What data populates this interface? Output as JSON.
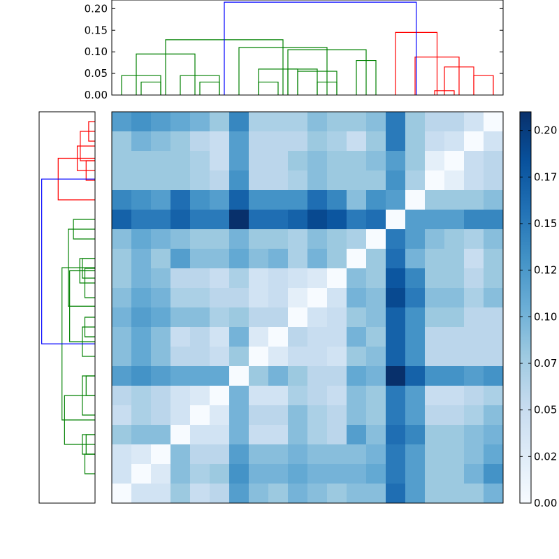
{
  "chart_data": {
    "type": "heatmap",
    "title": "",
    "xlabel": "",
    "ylabel": "",
    "n_rows": 20,
    "n_cols": 20,
    "colormap": "Blues",
    "color_range": [
      0,
      0.21
    ],
    "colorbar": {
      "ticks": [
        0.0,
        0.025,
        0.05,
        0.075,
        0.1,
        0.125,
        0.15,
        0.175,
        0.2
      ],
      "tick_labels": [
        "0.00",
        "0.02",
        "0.05",
        "0.07",
        "0.10",
        "0.12",
        "0.15",
        "0.17",
        "0.20"
      ]
    },
    "top_dendrogram": {
      "ylim": [
        0,
        0.22
      ],
      "ticks": [
        0.0,
        0.05,
        0.1,
        0.15,
        0.2
      ],
      "tick_labels": [
        "0.00",
        "0.05",
        "0.10",
        "0.15",
        "0.20"
      ],
      "links": [
        {
          "a": 0.5,
          "b": 2.5,
          "h": 0.045,
          "color": "#008000"
        },
        {
          "a": 1.5,
          "b": 2.5,
          "h": 0.03,
          "color": "#008000"
        },
        {
          "a": 3.5,
          "b": 5.5,
          "h": 0.045,
          "color": "#008000"
        },
        {
          "a": 4.5,
          "b": 5.5,
          "h": 0.03,
          "color": "#008000"
        },
        {
          "a": 1.25,
          "b": 4.25,
          "h": 0.095,
          "color": "#008000"
        },
        {
          "a": 7.5,
          "b": 9.5,
          "h": 0.06,
          "color": "#008000"
        },
        {
          "a": 7.5,
          "b": 8.5,
          "h": 0.03,
          "color": "#008000"
        },
        {
          "a": 9.5,
          "b": 11.5,
          "h": 0.055,
          "color": "#008000"
        },
        {
          "a": 10.5,
          "b": 11.5,
          "h": 0.03,
          "color": "#008000"
        },
        {
          "a": 9.0,
          "b": 10.5,
          "h": 0.06,
          "color": "#008000"
        },
        {
          "a": 12.5,
          "b": 13.5,
          "h": 0.08,
          "color": "#008000"
        },
        {
          "a": 9.0,
          "b": 13.0,
          "h": 0.105,
          "color": "#008000"
        },
        {
          "a": 6.5,
          "b": 11.0,
          "h": 0.11,
          "color": "#008000"
        },
        {
          "a": 2.75,
          "b": 8.75,
          "h": 0.128,
          "color": "#008000"
        },
        {
          "a": 16.5,
          "b": 17.5,
          "h": 0.01,
          "color": "#ff0000"
        },
        {
          "a": 17.0,
          "b": 18.5,
          "h": 0.065,
          "color": "#ff0000"
        },
        {
          "a": 18.5,
          "b": 19.5,
          "h": 0.045,
          "color": "#ff0000"
        },
        {
          "a": 15.5,
          "b": 17.75,
          "h": 0.088,
          "color": "#ff0000"
        },
        {
          "a": 14.5,
          "b": 16.625,
          "h": 0.145,
          "color": "#ff0000"
        },
        {
          "a": 5.75,
          "b": 15.5625,
          "h": 0.215,
          "color": "#0000ff"
        }
      ]
    },
    "left_dendrogram": {
      "xlim": [
        0,
        0.22
      ],
      "links": [
        {
          "a": 0.5,
          "b": 1.5,
          "h": 0.025,
          "color": "#ff0000"
        },
        {
          "a": 1.0,
          "b": 2.5,
          "h": 0.058,
          "color": "#ff0000"
        },
        {
          "a": 2.5,
          "b": 3.5,
          "h": 0.035,
          "color": "#ff0000"
        },
        {
          "a": 1.75,
          "b": 3.0,
          "h": 0.07,
          "color": "#ff0000"
        },
        {
          "a": 2.375,
          "b": 4.5,
          "h": 0.145,
          "color": "#ff0000"
        },
        {
          "a": 5.5,
          "b": 6.5,
          "h": 0.085,
          "color": "#008000"
        },
        {
          "a": 7.5,
          "b": 8.5,
          "h": 0.05,
          "color": "#008000"
        },
        {
          "a": 8.0,
          "b": 9.5,
          "h": 0.04,
          "color": "#008000"
        },
        {
          "a": 7.5,
          "b": 8.75,
          "h": 0.06,
          "color": "#008000"
        },
        {
          "a": 10.5,
          "b": 11.5,
          "h": 0.04,
          "color": "#008000"
        },
        {
          "a": 11.0,
          "b": 12.5,
          "h": 0.05,
          "color": "#008000"
        },
        {
          "a": 8.125,
          "b": 11.75,
          "h": 0.1,
          "color": "#008000"
        },
        {
          "a": 6.0,
          "b": 9.9375,
          "h": 0.105,
          "color": "#008000"
        },
        {
          "a": 13.5,
          "b": 15.5,
          "h": 0.05,
          "color": "#008000"
        },
        {
          "a": 13.5,
          "b": 14.5,
          "h": 0.035,
          "color": "#008000"
        },
        {
          "a": 16.5,
          "b": 17.5,
          "h": 0.035,
          "color": "#008000"
        },
        {
          "a": 17.5,
          "b": 18.5,
          "h": 0.04,
          "color": "#008000"
        },
        {
          "a": 16.5,
          "b": 17.5,
          "h": 0.05,
          "color": "#008000"
        },
        {
          "a": 14.5,
          "b": 17.0,
          "h": 0.12,
          "color": "#008000"
        },
        {
          "a": 7.96875,
          "b": 15.75,
          "h": 0.13,
          "color": "#008000"
        },
        {
          "a": 3.4375,
          "b": 11.859375,
          "h": 0.21,
          "color": "#0000ff"
        }
      ]
    },
    "matrix": [
      [
        0.12,
        0.13,
        0.12,
        0.11,
        0.1,
        0.08,
        0.14,
        0.07,
        0.07,
        0.07,
        0.09,
        0.08,
        0.08,
        0.09,
        0.15,
        0.08,
        0.06,
        0.06,
        0.04,
        0.0
      ],
      [
        0.08,
        0.1,
        0.09,
        0.08,
        0.06,
        0.05,
        0.12,
        0.06,
        0.06,
        0.06,
        0.08,
        0.07,
        0.05,
        0.08,
        0.15,
        0.08,
        0.05,
        0.04,
        0.0,
        0.04
      ],
      [
        0.08,
        0.08,
        0.08,
        0.08,
        0.07,
        0.05,
        0.12,
        0.06,
        0.06,
        0.08,
        0.09,
        0.08,
        0.08,
        0.09,
        0.12,
        0.08,
        0.02,
        0.0,
        0.05,
        0.06
      ],
      [
        0.08,
        0.08,
        0.08,
        0.08,
        0.07,
        0.06,
        0.13,
        0.06,
        0.06,
        0.07,
        0.09,
        0.08,
        0.08,
        0.08,
        0.13,
        0.07,
        0.0,
        0.02,
        0.05,
        0.06
      ],
      [
        0.14,
        0.13,
        0.12,
        0.16,
        0.13,
        0.12,
        0.17,
        0.13,
        0.13,
        0.13,
        0.16,
        0.14,
        0.09,
        0.13,
        0.12,
        0.0,
        0.08,
        0.08,
        0.08,
        0.09
      ],
      [
        0.17,
        0.15,
        0.15,
        0.17,
        0.15,
        0.15,
        0.21,
        0.16,
        0.16,
        0.17,
        0.19,
        0.18,
        0.15,
        0.16,
        0.0,
        0.12,
        0.12,
        0.12,
        0.14,
        0.14
      ],
      [
        0.09,
        0.11,
        0.1,
        0.09,
        0.08,
        0.08,
        0.1,
        0.08,
        0.08,
        0.07,
        0.09,
        0.08,
        0.07,
        0.0,
        0.15,
        0.12,
        0.09,
        0.08,
        0.07,
        0.09
      ],
      [
        0.08,
        0.1,
        0.08,
        0.12,
        0.09,
        0.09,
        0.11,
        0.09,
        0.1,
        0.07,
        0.1,
        0.08,
        0.0,
        0.08,
        0.16,
        0.1,
        0.08,
        0.08,
        0.05,
        0.08
      ],
      [
        0.08,
        0.1,
        0.09,
        0.06,
        0.06,
        0.05,
        0.07,
        0.04,
        0.05,
        0.04,
        0.03,
        0.0,
        0.09,
        0.08,
        0.18,
        0.14,
        0.08,
        0.08,
        0.06,
        0.08
      ],
      [
        0.09,
        0.11,
        0.1,
        0.07,
        0.07,
        0.06,
        0.06,
        0.04,
        0.05,
        0.02,
        0.0,
        0.04,
        0.1,
        0.09,
        0.19,
        0.15,
        0.09,
        0.09,
        0.07,
        0.09
      ],
      [
        0.1,
        0.12,
        0.11,
        0.09,
        0.09,
        0.07,
        0.08,
        0.06,
        0.06,
        0.0,
        0.04,
        0.05,
        0.08,
        0.09,
        0.17,
        0.13,
        0.08,
        0.08,
        0.06,
        0.06
      ],
      [
        0.09,
        0.11,
        0.09,
        0.05,
        0.06,
        0.04,
        0.1,
        0.03,
        0.0,
        0.06,
        0.05,
        0.05,
        0.1,
        0.08,
        0.17,
        0.13,
        0.06,
        0.06,
        0.06,
        0.06
      ],
      [
        0.09,
        0.11,
        0.09,
        0.06,
        0.06,
        0.05,
        0.08,
        0.0,
        0.03,
        0.05,
        0.05,
        0.04,
        0.08,
        0.09,
        0.17,
        0.13,
        0.06,
        0.06,
        0.06,
        0.06
      ],
      [
        0.12,
        0.13,
        0.12,
        0.11,
        0.11,
        0.11,
        0.0,
        0.08,
        0.1,
        0.08,
        0.06,
        0.06,
        0.11,
        0.1,
        0.21,
        0.17,
        0.13,
        0.13,
        0.12,
        0.13
      ],
      [
        0.06,
        0.07,
        0.06,
        0.04,
        0.03,
        0.0,
        0.1,
        0.04,
        0.04,
        0.07,
        0.06,
        0.05,
        0.09,
        0.08,
        0.15,
        0.12,
        0.05,
        0.05,
        0.06,
        0.07
      ],
      [
        0.05,
        0.07,
        0.06,
        0.04,
        0.0,
        0.03,
        0.1,
        0.06,
        0.06,
        0.09,
        0.07,
        0.06,
        0.09,
        0.08,
        0.15,
        0.12,
        0.06,
        0.06,
        0.07,
        0.09
      ],
      [
        0.08,
        0.09,
        0.09,
        0.0,
        0.04,
        0.04,
        0.1,
        0.05,
        0.05,
        0.09,
        0.07,
        0.06,
        0.12,
        0.09,
        0.16,
        0.14,
        0.08,
        0.08,
        0.09,
        0.1
      ],
      [
        0.04,
        0.03,
        0.0,
        0.09,
        0.06,
        0.06,
        0.12,
        0.09,
        0.09,
        0.1,
        0.09,
        0.09,
        0.09,
        0.1,
        0.15,
        0.12,
        0.08,
        0.08,
        0.09,
        0.11
      ],
      [
        0.04,
        0.0,
        0.03,
        0.09,
        0.07,
        0.08,
        0.13,
        0.1,
        0.1,
        0.11,
        0.1,
        0.1,
        0.1,
        0.11,
        0.15,
        0.12,
        0.08,
        0.08,
        0.1,
        0.13
      ],
      [
        0.0,
        0.04,
        0.04,
        0.08,
        0.05,
        0.06,
        0.12,
        0.09,
        0.08,
        0.1,
        0.09,
        0.08,
        0.09,
        0.09,
        0.16,
        0.12,
        0.08,
        0.08,
        0.08,
        0.1
      ]
    ]
  }
}
